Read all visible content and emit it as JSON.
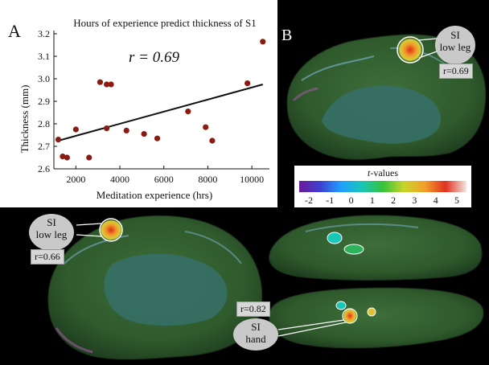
{
  "panel_a": {
    "letter": "A",
    "r_label": "r = 0.69"
  },
  "panel_b": {
    "letter": "B",
    "bubble_line1": "SI",
    "bubble_line2": "low leg",
    "r_label": "r=0.69"
  },
  "panel_c_left": {
    "bubble_line1": "SI",
    "bubble_line2": "low leg",
    "r_label": "r=0.66"
  },
  "panel_c_right": {
    "bubble_line1": "SI",
    "bubble_line2": "hand",
    "r_label": "r=0.82"
  },
  "colorbar": {
    "title_italic": "t",
    "title_rest": "-values",
    "ticks": [
      "-2",
      "-1",
      "0",
      "1",
      "2",
      "3",
      "4",
      "5"
    ],
    "stops": [
      "#6a1b9a",
      "#3f3fd0",
      "#1f9fff",
      "#17c7b7",
      "#35c23a",
      "#c8d52a",
      "#f2a02a",
      "#e03020",
      "#f4e6e2"
    ]
  },
  "chart_data": {
    "type": "scatter",
    "title": "Hours of experience predict thickness of S1",
    "xlabel": "Meditation experience (hrs)",
    "ylabel": "Thickness (mm)",
    "xlim": [
      1000,
      10800
    ],
    "ylim": [
      2.6,
      3.2
    ],
    "xticks": [
      2000,
      4000,
      6000,
      8000,
      10000
    ],
    "yticks": [
      2.6,
      2.7,
      2.8,
      2.9,
      3.0,
      3.1,
      3.2
    ],
    "points": [
      [
        1200,
        2.73
      ],
      [
        1400,
        2.655
      ],
      [
        1600,
        2.65
      ],
      [
        2000,
        2.775
      ],
      [
        2600,
        2.65
      ],
      [
        3100,
        2.985
      ],
      [
        3400,
        2.78
      ],
      [
        3400,
        2.975
      ],
      [
        3600,
        2.975
      ],
      [
        4300,
        2.77
      ],
      [
        5100,
        2.755
      ],
      [
        5700,
        2.735
      ],
      [
        7100,
        2.855
      ],
      [
        7900,
        2.785
      ],
      [
        8200,
        2.725
      ],
      [
        9800,
        2.98
      ],
      [
        10500,
        3.165
      ]
    ],
    "fit_line": [
      [
        1200,
        2.725
      ],
      [
        10500,
        2.975
      ]
    ],
    "point_color": "#8b1a12",
    "grid": false
  }
}
